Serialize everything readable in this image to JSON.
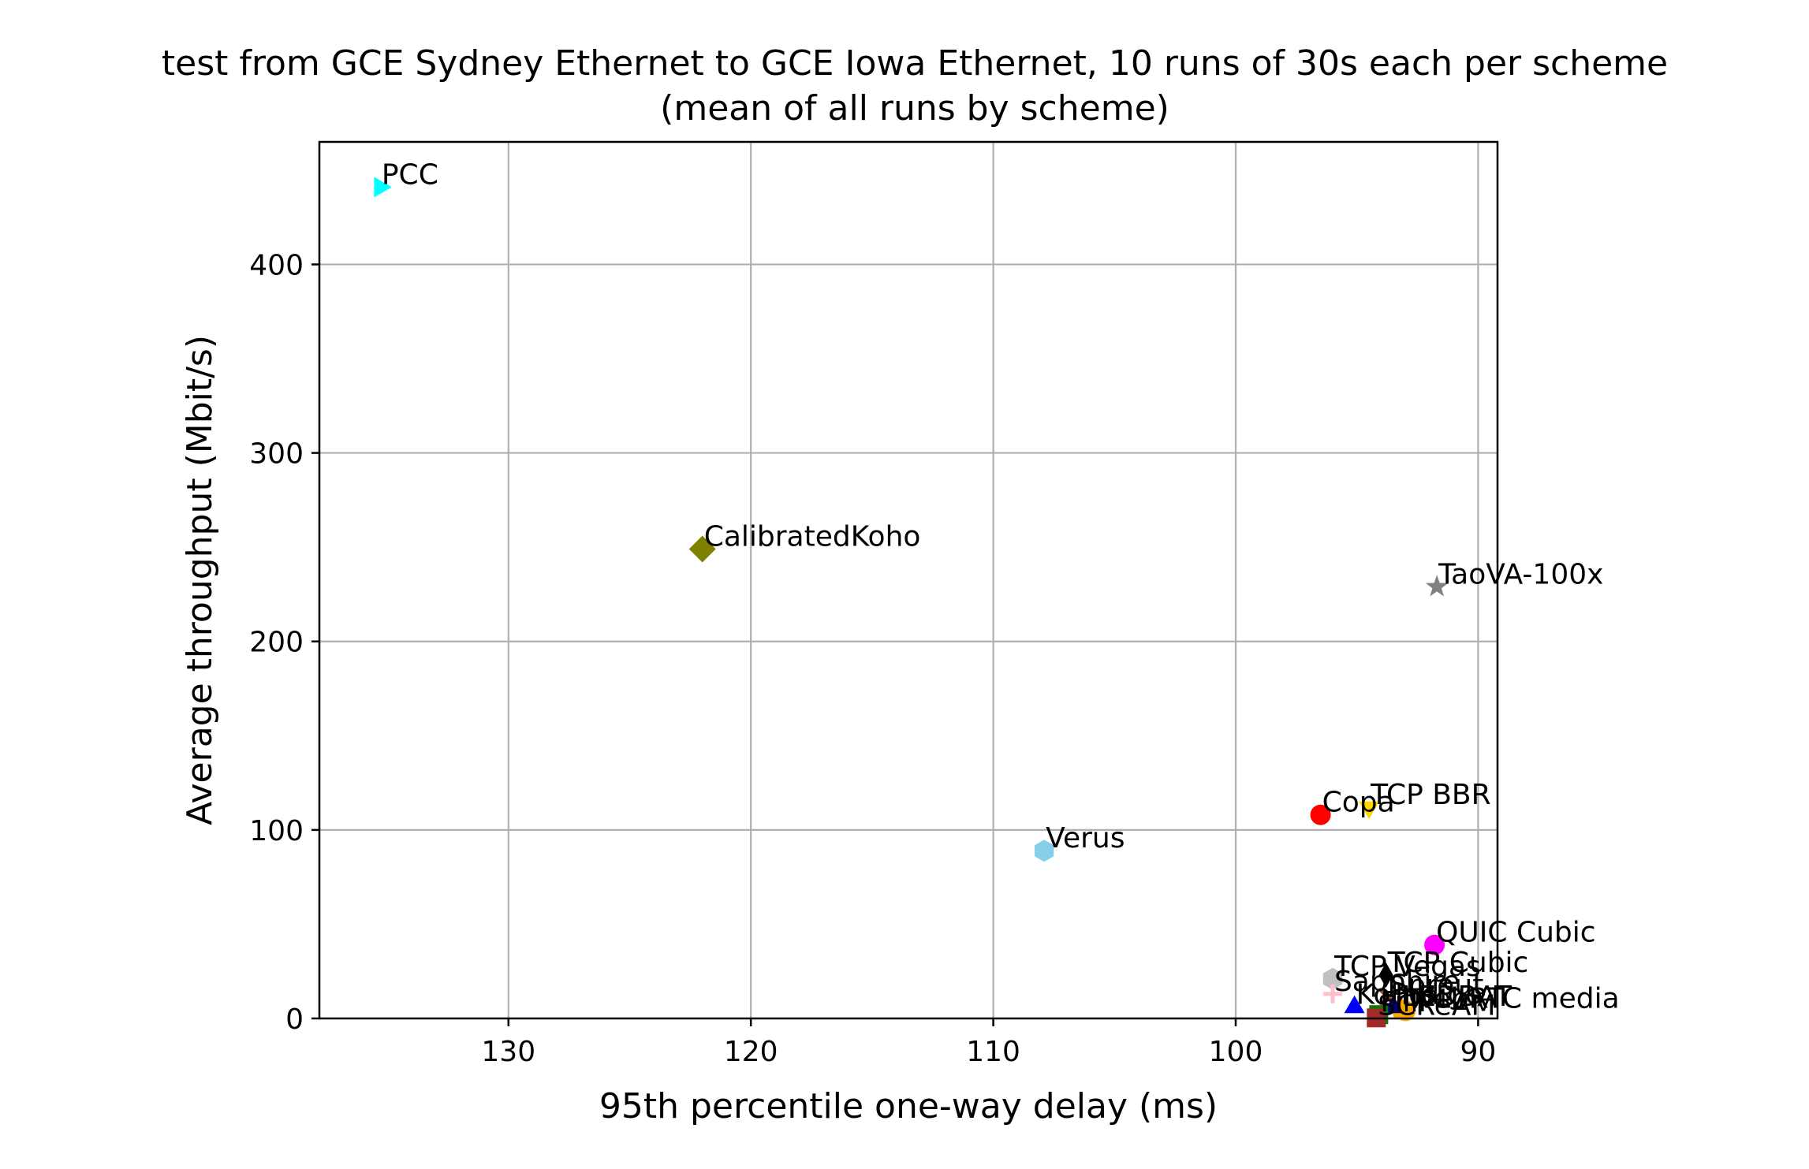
{
  "chart_data": {
    "type": "scatter",
    "title": "test from GCE Sydney Ethernet to GCE Iowa Ethernet, 10 runs of 30s each per scheme",
    "subtitle": "(mean of all runs by scheme)",
    "xlabel": "95th percentile one-way delay (ms)",
    "ylabel": "Average throughput (Mbit/s)",
    "x_reversed": true,
    "xlim": [
      137.8,
      89.2
    ],
    "ylim": [
      0,
      465
    ],
    "xticks": [
      130,
      120,
      110,
      100,
      90
    ],
    "yticks": [
      0,
      100,
      200,
      300,
      400
    ],
    "grid": true,
    "series": [
      {
        "name": "PCC",
        "x": 135.3,
        "y": 441,
        "marker": "triangle-right",
        "color": "#00ffff"
      },
      {
        "name": "CalibratedKoho",
        "x": 122.0,
        "y": 249,
        "marker": "diamond",
        "color": "#808000"
      },
      {
        "name": "TaoVA-100x",
        "x": 91.7,
        "y": 229,
        "marker": "star",
        "color": "#808080"
      },
      {
        "name": "TCP BBR",
        "x": 94.5,
        "y": 112,
        "marker": "triangle-down",
        "color": "#ffd700"
      },
      {
        "name": "Copa",
        "x": 96.5,
        "y": 108,
        "marker": "circle",
        "color": "#ff0000"
      },
      {
        "name": "Verus",
        "x": 107.9,
        "y": 89,
        "marker": "hexagon",
        "color": "#87ceeb"
      },
      {
        "name": "QUIC Cubic",
        "x": 91.8,
        "y": 39,
        "marker": "circle",
        "color": "#ff00ff"
      },
      {
        "name": "TCP Cubic",
        "x": 93.8,
        "y": 23,
        "marker": "diamond-thin",
        "color": "#000000"
      },
      {
        "name": "TCP Vegas",
        "x": 96.0,
        "y": 21,
        "marker": "hexagon",
        "color": "#c0c0c0"
      },
      {
        "name": "Sprout",
        "x": 93.7,
        "y": 11,
        "marker": "x",
        "color": "#a0522d"
      },
      {
        "name": "Sapphire",
        "x": 96.0,
        "y": 13,
        "marker": "plus",
        "color": "#ffc0cb"
      },
      {
        "name": "LEDBAT",
        "x": 93.2,
        "y": 5,
        "marker": "pentagon",
        "color": "#ffa500"
      },
      {
        "name": "WebRTC media",
        "x": 93.0,
        "y": 4,
        "marker": "circle",
        "color": "#ffa500"
      },
      {
        "name": "Indigo",
        "x": 93.5,
        "y": 6,
        "marker": "triangle-up",
        "color": "#000080"
      },
      {
        "name": "Koho",
        "x": 95.1,
        "y": 6,
        "marker": "triangle-up",
        "color": "#0000ff"
      },
      {
        "name": "FillP",
        "x": 94.1,
        "y": 2,
        "marker": "square",
        "color": "#008000"
      },
      {
        "name": "SCReAM",
        "x": 94.2,
        "y": 0.3,
        "marker": "square",
        "color": "#a52a2a"
      }
    ]
  }
}
